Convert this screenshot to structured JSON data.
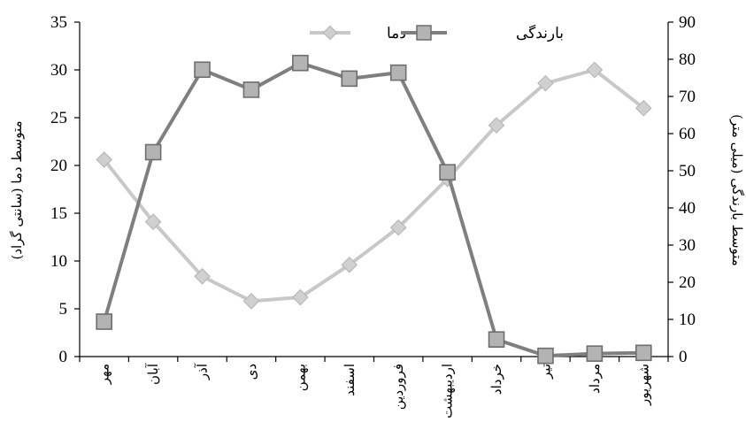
{
  "chart_data": {
    "type": "line",
    "categories": [
      "مهر",
      "آبان",
      "آذر",
      "دی",
      "بهمن",
      "اسفند",
      "فروردین",
      "اردیبهشت",
      "خرداد",
      "تیر",
      "مرداد",
      "شهریور"
    ],
    "series": [
      {
        "name": "دما",
        "axis": "left",
        "color": "#c8c8c8",
        "marker": "diamond",
        "values": [
          20.6,
          14.1,
          8.4,
          5.8,
          6.2,
          9.6,
          13.5,
          18.6,
          24.2,
          28.6,
          30.0,
          26.0
        ]
      },
      {
        "name": "بارندگی",
        "axis": "right",
        "color": "#7f7f7f",
        "marker": "square",
        "values": [
          9.4,
          55.0,
          77.2,
          71.8,
          79.0,
          74.8,
          76.4,
          49.6,
          4.6,
          0.2,
          0.8,
          1.0
        ]
      }
    ],
    "ylabel": "متوسط دما (سانتی گراد)",
    "y2label": "متوسط بارندگی (میلی متر)",
    "ylim": [
      0,
      35
    ],
    "y2lim": [
      0,
      90
    ],
    "yticks": [
      "0",
      "5",
      "10",
      "15",
      "20",
      "25",
      "30",
      "35"
    ],
    "y2ticks": [
      "0",
      "10",
      "20",
      "30",
      "40",
      "50",
      "60",
      "70",
      "80",
      "90"
    ],
    "legend_position": "top-center",
    "grid": false
  }
}
